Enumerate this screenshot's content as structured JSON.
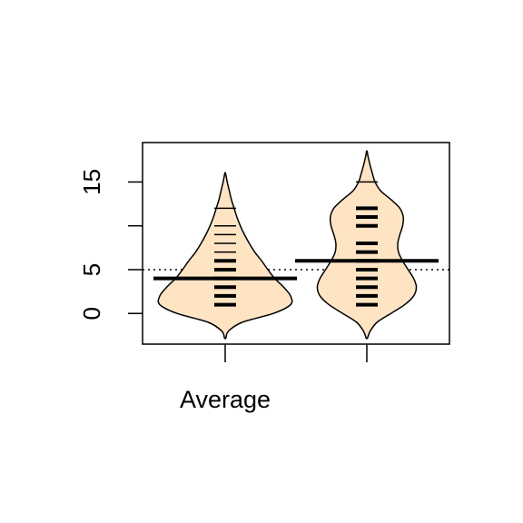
{
  "chart_data": {
    "type": "beanplot",
    "categories": [
      "Average",
      ""
    ],
    "ylim": [
      -3.5,
      19.5
    ],
    "yticks": [
      0,
      5,
      10,
      15
    ],
    "ytick_labels": [
      "0",
      "5",
      "",
      "15"
    ],
    "overall_mean": 5,
    "grid": false,
    "legend": "none",
    "colors": {
      "bean_fill": "#FFE4C4",
      "line": "#000000"
    },
    "series": [
      {
        "category": "Average",
        "mean": 4,
        "range": [
          -2.8,
          16
        ],
        "points": [
          1,
          1,
          2,
          2,
          3,
          3,
          4,
          4,
          5,
          5,
          5,
          6,
          6,
          7,
          8,
          9,
          10,
          12
        ],
        "density": [
          [
            -2.8,
            0.1
          ],
          [
            -2,
            0.5
          ],
          [
            -1,
            2.5
          ],
          [
            0,
            7
          ],
          [
            1,
            9.5
          ],
          [
            2,
            9.5
          ],
          [
            3,
            8.5
          ],
          [
            4,
            7.2
          ],
          [
            5,
            6.2
          ],
          [
            6,
            5.3
          ],
          [
            7,
            4.3
          ],
          [
            8,
            3.5
          ],
          [
            9,
            2.8
          ],
          [
            10,
            2.2
          ],
          [
            11,
            1.7
          ],
          [
            12,
            1.3
          ],
          [
            13,
            0.9
          ],
          [
            14,
            0.6
          ],
          [
            15,
            0.3
          ],
          [
            16,
            0.05
          ]
        ]
      },
      {
        "category": "",
        "mean": 6,
        "range": [
          -2.8,
          18.5
        ],
        "points": [
          1,
          1,
          2,
          2,
          3,
          3,
          4,
          4,
          5,
          5,
          6,
          6,
          7,
          7,
          8,
          8,
          10,
          10,
          11,
          11,
          12,
          12,
          15
        ],
        "density": [
          [
            -2.8,
            0.1
          ],
          [
            -2,
            0.5
          ],
          [
            -1,
            1.5
          ],
          [
            0,
            3.5
          ],
          [
            1,
            5.5
          ],
          [
            2,
            6.8
          ],
          [
            3,
            7.2
          ],
          [
            4,
            6.8
          ],
          [
            5,
            6.0
          ],
          [
            6,
            5.2
          ],
          [
            7,
            4.6
          ],
          [
            8,
            4.5
          ],
          [
            9,
            4.8
          ],
          [
            10,
            5.2
          ],
          [
            11,
            5.3
          ],
          [
            12,
            4.8
          ],
          [
            13,
            3.5
          ],
          [
            14,
            2.0
          ],
          [
            15,
            1.2
          ],
          [
            16,
            0.8
          ],
          [
            17,
            0.45
          ],
          [
            18,
            0.15
          ],
          [
            18.5,
            0.05
          ]
        ]
      }
    ]
  }
}
